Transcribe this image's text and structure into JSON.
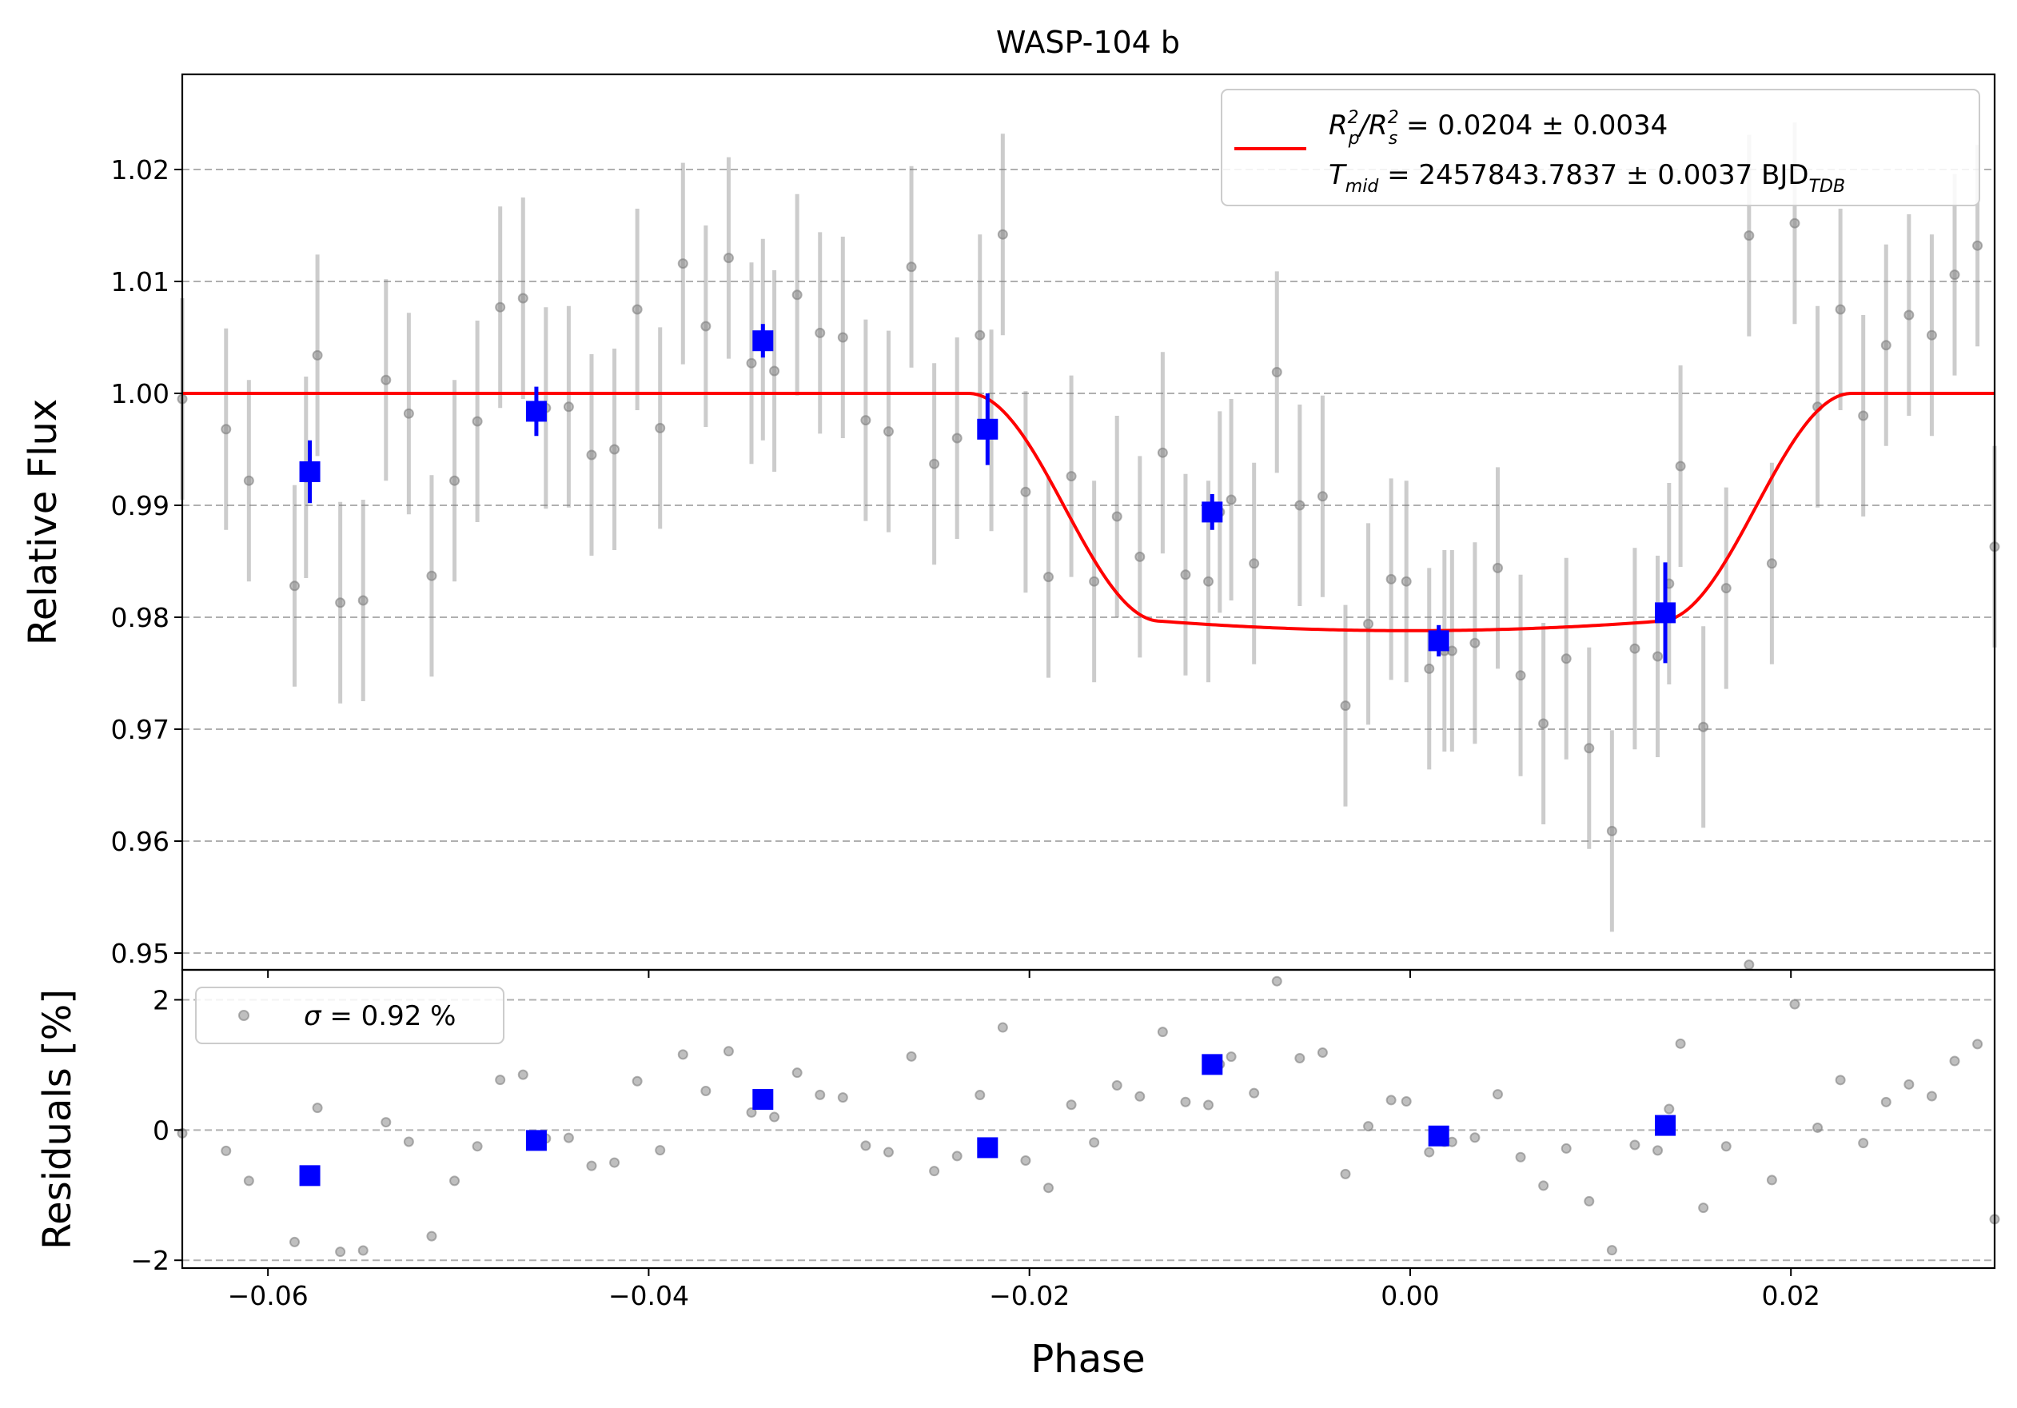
{
  "chart_data": [
    {
      "type": "scatter",
      "panel": "main",
      "title": "WASP-104 b",
      "xlabel": "",
      "ylabel": "Relative Flux",
      "xlim": [
        -0.0645,
        0.0307
      ],
      "ylim": [
        0.9485,
        1.0285
      ],
      "grid": "horizontal dashed",
      "xticks": [
        {
          "value": -0.06,
          "label": "−0.06"
        },
        {
          "value": -0.04,
          "label": "−0.04"
        },
        {
          "value": -0.02,
          "label": "−0.02"
        },
        {
          "value": 0.0,
          "label": "0.00"
        },
        {
          "value": 0.02,
          "label": "0.02"
        }
      ],
      "yticks": [
        {
          "value": 0.95,
          "label": "0.95"
        },
        {
          "value": 0.96,
          "label": "0.96"
        },
        {
          "value": 0.97,
          "label": "0.97"
        },
        {
          "value": 0.98,
          "label": "0.98"
        },
        {
          "value": 0.99,
          "label": "0.99"
        },
        {
          "value": 1.0,
          "label": "1.00"
        },
        {
          "value": 1.01,
          "label": "1.01"
        },
        {
          "value": 1.02,
          "label": "1.02"
        }
      ],
      "legend": {
        "placement": "upper right",
        "line1": {
          "prefix": "R",
          "sub1": "p",
          "sup1": "2",
          "slash": "/R",
          "sub2": "s",
          "sup2": "2",
          "value": " = 0.0204 ± 0.0034"
        },
        "line2": {
          "prefix": "T",
          "sub1": "mid",
          "value": " = 2457843.7837 ± 0.0037 BJD",
          "sub2": "TDB"
        }
      },
      "model": {
        "color": "#ff0000",
        "baseline": 1.0,
        "depth": 0.0212,
        "t_mid": 0.0,
        "t_contact_1": -0.0232,
        "t_contact_2": -0.0131,
        "t_contact_3": 0.0131,
        "t_contact_4": 0.0232
      },
      "raw_points": {
        "color": "#808080",
        "error": 0.009,
        "x": [
          -0.0645,
          -0.0622,
          -0.061,
          -0.0586,
          -0.058,
          -0.0574,
          -0.0562,
          -0.055,
          -0.0538,
          -0.0526,
          -0.0514,
          -0.0502,
          -0.049,
          -0.0478,
          -0.0466,
          -0.0454,
          -0.0442,
          -0.043,
          -0.0418,
          -0.0406,
          -0.0394,
          -0.0382,
          -0.037,
          -0.0358,
          -0.0346,
          -0.034,
          -0.0334,
          -0.0322,
          -0.031,
          -0.0298,
          -0.0286,
          -0.0274,
          -0.0262,
          -0.025,
          -0.0238,
          -0.0226,
          -0.022,
          -0.0214,
          -0.0202,
          -0.019,
          -0.0178,
          -0.0166,
          -0.0154,
          -0.0142,
          -0.013,
          -0.0118,
          -0.0106,
          -0.01,
          -0.0094,
          -0.0082,
          -0.007,
          -0.0058,
          -0.0046,
          -0.0034,
          -0.0022,
          -0.001,
          -0.0002,
          0.001,
          0.0018,
          0.0022,
          0.0034,
          0.0046,
          0.0058,
          0.007,
          0.0082,
          0.0094,
          0.0106,
          0.0118,
          0.013,
          0.0136,
          0.0142,
          0.0154,
          0.0166,
          0.0178,
          0.019,
          0.0202,
          0.0214,
          0.0226,
          0.0238,
          0.025,
          0.0262,
          0.0274,
          0.0286,
          0.0298,
          0.0307
        ],
        "y": [
          0.9995,
          0.9968,
          0.9922,
          0.9828,
          0.9925,
          1.0034,
          0.9813,
          0.9815,
          1.0012,
          0.9982,
          0.9837,
          0.9922,
          0.9975,
          1.0077,
          1.0085,
          0.9987,
          0.9988,
          0.9945,
          0.995,
          1.0075,
          0.9969,
          1.0116,
          1.006,
          1.0121,
          1.0027,
          1.0048,
          1.002,
          1.0088,
          1.0054,
          1.005,
          0.9976,
          0.9966,
          1.0113,
          0.9937,
          0.996,
          1.0052,
          0.9967,
          1.0142,
          0.9912,
          0.9836,
          0.9926,
          0.9832,
          0.989,
          0.9854,
          0.9947,
          0.9838,
          0.9832,
          0.9894,
          0.9905,
          0.9848,
          1.0019,
          0.99,
          0.9908,
          0.9721,
          0.9794,
          0.9834,
          0.9832,
          0.9754,
          0.977,
          0.977,
          0.9777,
          0.9844,
          0.9748,
          0.9705,
          0.9763,
          0.9683,
          0.9609,
          0.9772,
          0.9765,
          0.983,
          0.9935,
          0.9702,
          0.9826,
          1.0141,
          0.9848,
          1.0152,
          0.9988,
          1.0075,
          0.998,
          1.0043,
          1.007,
          1.0052,
          1.0106,
          1.0132,
          0.9863
        ]
      },
      "binned_points": {
        "color": "#0000ff",
        "x": [
          -0.0578,
          -0.0459,
          -0.034,
          -0.0222,
          -0.0104,
          0.0015,
          0.0134
        ],
        "y": [
          0.993,
          0.9984,
          1.0047,
          0.9968,
          0.9894,
          0.9779,
          0.9804
        ],
        "err": [
          0.0028,
          0.0022,
          0.0015,
          0.0032,
          0.0016,
          0.0014,
          0.0045
        ]
      }
    },
    {
      "type": "scatter",
      "panel": "residuals",
      "xlabel": "Phase",
      "ylabel": "Residuals [%]",
      "xlim": [
        -0.0645,
        0.0307
      ],
      "ylim": [
        -2.12,
        2.46
      ],
      "grid": "horizontal dashed",
      "yticks": [
        {
          "value": -2,
          "label": "−2"
        },
        {
          "value": 0,
          "label": "0"
        },
        {
          "value": 2,
          "label": "2"
        }
      ],
      "legend": {
        "placement": "upper left",
        "symbol": "σ",
        "text": " = 0.92 %"
      }
    }
  ]
}
